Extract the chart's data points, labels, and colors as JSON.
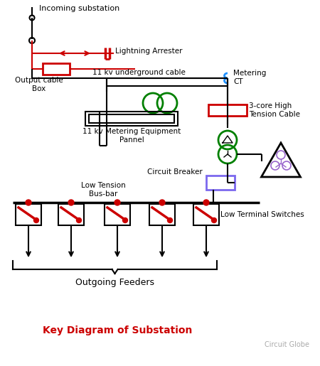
{
  "title": "Key Diagram of Substation",
  "title_color": "#cc0000",
  "watermark": "Circuit Globe",
  "bg_color": "#ffffff",
  "line_color": "#000000",
  "red_color": "#cc0000",
  "green_color": "#008000",
  "blue_color": "#1e90ff",
  "purple_color": "#7b68ee",
  "labels": {
    "incoming": "Incoming substation",
    "lightning": "Lightning Arrester",
    "underground": "11 kv underground cable",
    "output_box": "Output cable\nBox",
    "metering_ct": "Metering\nCT",
    "high_tension": "3-core High\nTension Cable",
    "metering_panel": "11 kv Metering Equipment\nPannel",
    "circuit_breaker": "Circuit Breaker",
    "low_tension": "Low Tension\nBus-bar",
    "low_terminal": "Low Terminal Switches",
    "outgoing": "Outgoing Feeders"
  }
}
